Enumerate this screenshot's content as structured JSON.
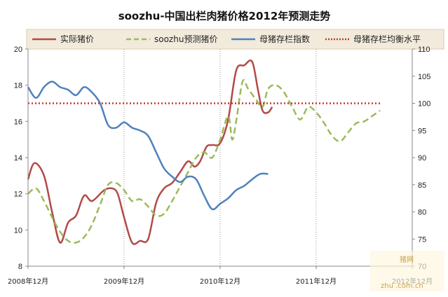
{
  "chart_data": {
    "type": "line",
    "title": "soozhu-中国出栏肉猪价格2012年预测走势",
    "x_tick_labels": [
      "2008年12月",
      "2009年12月",
      "2010年12月",
      "2011年12月",
      "2012年12月"
    ],
    "y_left": {
      "min": 8,
      "max": 20,
      "step": 2
    },
    "y_right": {
      "min": 70,
      "max": 110,
      "step": 5
    },
    "grid": false,
    "legend_position": "top",
    "colors": {
      "actual": "#b24a47",
      "forecast": "#9bbb59",
      "sow_index": "#4f81bd",
      "equilibrium": "#c0392b"
    },
    "series": [
      {
        "name": "实际猪价",
        "axis": "left",
        "style": "solid",
        "points": [
          [
            0,
            12.8
          ],
          [
            0.8,
            13.7
          ],
          [
            2,
            13.0
          ],
          [
            3,
            11.0
          ],
          [
            4,
            9.3
          ],
          [
            5,
            10.4
          ],
          [
            6,
            10.8
          ],
          [
            7,
            11.9
          ],
          [
            8,
            11.6
          ],
          [
            9.5,
            12.2
          ],
          [
            10.5,
            12.3
          ],
          [
            11.2,
            12.0
          ],
          [
            12,
            10.7
          ],
          [
            13,
            9.3
          ],
          [
            14,
            9.4
          ],
          [
            15,
            9.5
          ],
          [
            16,
            11.5
          ],
          [
            17,
            12.3
          ],
          [
            18,
            12.6
          ],
          [
            19,
            13.2
          ],
          [
            20,
            13.8
          ],
          [
            20.8,
            13.5
          ],
          [
            21.5,
            13.8
          ],
          [
            22.3,
            14.6
          ],
          [
            23,
            14.7
          ],
          [
            24,
            14.8
          ],
          [
            25,
            16.1
          ],
          [
            26,
            18.8
          ],
          [
            27,
            19.1
          ],
          [
            28,
            19.3
          ],
          [
            28.7,
            17.8
          ],
          [
            29.3,
            16.6
          ],
          [
            30,
            16.5
          ],
          [
            30.5,
            16.8
          ]
        ]
      },
      {
        "name": "soozhu预测猪价",
        "axis": "left",
        "style": "dashed",
        "points": [
          [
            0,
            12.0
          ],
          [
            1,
            12.3
          ],
          [
            2,
            11.6
          ],
          [
            3,
            10.7
          ],
          [
            4,
            9.9
          ],
          [
            5,
            9.4
          ],
          [
            6,
            9.3
          ],
          [
            7,
            9.6
          ],
          [
            8,
            10.3
          ],
          [
            9,
            11.4
          ],
          [
            10,
            12.5
          ],
          [
            11,
            12.6
          ],
          [
            12,
            12.2
          ],
          [
            13,
            11.6
          ],
          [
            14,
            11.7
          ],
          [
            15,
            11.3
          ],
          [
            16,
            10.8
          ],
          [
            17,
            10.9
          ],
          [
            18,
            11.6
          ],
          [
            19,
            12.4
          ],
          [
            20,
            13.2
          ],
          [
            21,
            14.0
          ],
          [
            22,
            14.3
          ],
          [
            23,
            14.0
          ],
          [
            24,
            15.0
          ],
          [
            25,
            16.3
          ],
          [
            25.5,
            15.0
          ],
          [
            26,
            16.0
          ],
          [
            26.8,
            18.2
          ],
          [
            27.5,
            17.8
          ],
          [
            28.5,
            17.2
          ],
          [
            29.3,
            16.8
          ],
          [
            30,
            17.8
          ],
          [
            31,
            18.0
          ],
          [
            32,
            17.6
          ],
          [
            33,
            16.8
          ],
          [
            34,
            16.1
          ],
          [
            35,
            16.8
          ],
          [
            36,
            16.5
          ],
          [
            37,
            15.9
          ],
          [
            38,
            15.2
          ],
          [
            39,
            14.9
          ],
          [
            40,
            15.4
          ],
          [
            41,
            15.9
          ],
          [
            42,
            16.0
          ],
          [
            43,
            16.3
          ],
          [
            44,
            16.6
          ]
        ]
      },
      {
        "name": "母猪存栏指数",
        "axis": "right",
        "style": "solid",
        "points": [
          [
            0,
            103.0
          ],
          [
            1,
            101.0
          ],
          [
            2,
            103.0
          ],
          [
            3,
            104.0
          ],
          [
            4,
            103.0
          ],
          [
            5,
            102.5
          ],
          [
            6,
            101.5
          ],
          [
            7,
            103.0
          ],
          [
            8,
            102.0
          ],
          [
            9,
            100.0
          ],
          [
            10,
            96.0
          ],
          [
            11,
            95.5
          ],
          [
            12,
            96.5
          ],
          [
            13,
            95.5
          ],
          [
            14,
            95.0
          ],
          [
            15,
            94.0
          ],
          [
            16,
            91.0
          ],
          [
            17,
            88.0
          ],
          [
            18,
            86.5
          ],
          [
            19,
            85.5
          ],
          [
            20,
            86.5
          ],
          [
            21,
            86.0
          ],
          [
            22,
            83.0
          ],
          [
            23,
            80.5
          ],
          [
            24,
            81.5
          ],
          [
            25,
            82.5
          ],
          [
            26,
            84.0
          ],
          [
            27,
            84.8
          ],
          [
            28,
            86.0
          ],
          [
            29,
            87.0
          ],
          [
            30,
            87.0
          ]
        ]
      },
      {
        "name": "母猪存栏均衡水平",
        "axis": "right",
        "style": "dotted",
        "points": [
          [
            0,
            100
          ],
          [
            44,
            100
          ]
        ]
      }
    ]
  },
  "watermark": {
    "cn_text": "猪网",
    "url_text": "zhu .com.cn"
  }
}
